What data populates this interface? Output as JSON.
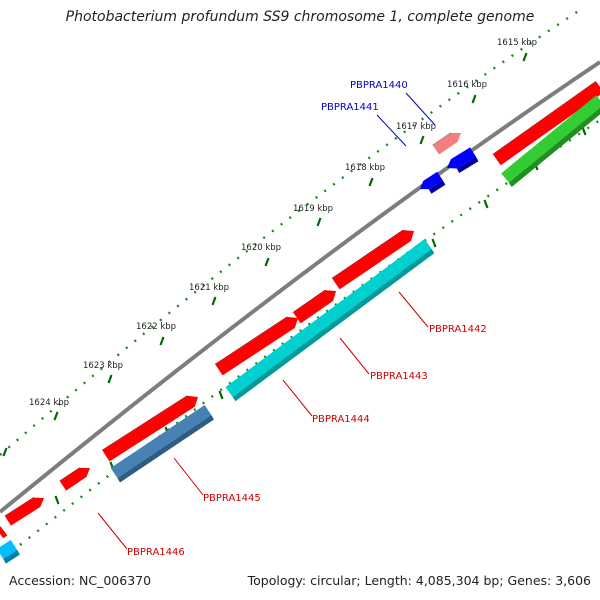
{
  "title": "Photobacterium profundum SS9 chromosome 1, complete genome",
  "footer": {
    "accession": "Accession: NC_006370",
    "topology": "Topology: circular; Length: 4,085,304 bp; Genes: 3,606"
  },
  "ruler": [
    "1615 kbp",
    "1616 kbp",
    "1617 kbp",
    "1618 kbp",
    "1619 kbp",
    "1620 kbp",
    "1621 kbp",
    "1622 kbp",
    "1623 kbp",
    "1624 kbp"
  ],
  "gene_labels": [
    {
      "name": "PBPRA1440",
      "color": "#0000cc"
    },
    {
      "name": "PBPRA1441",
      "color": "#0000cc"
    },
    {
      "name": "PBPRA1442",
      "color": "#cc0000"
    },
    {
      "name": "PBPRA1443",
      "color": "#cc0000"
    },
    {
      "name": "PBPRA1444",
      "color": "#cc0000"
    },
    {
      "name": "PBPRA1445",
      "color": "#cc0000"
    },
    {
      "name": "PBPRA1446",
      "color": "#cc0000"
    }
  ],
  "colors": {
    "backbone": "#808080",
    "forward_cds": "#ff0000",
    "forward_cds_light": "#f08080",
    "reverse_cds_blue": "#0000ff",
    "cyan_track": "#00d0d0",
    "steel_track": "#4682b4",
    "green_track": "#33cc33",
    "ticks": "#006600"
  }
}
